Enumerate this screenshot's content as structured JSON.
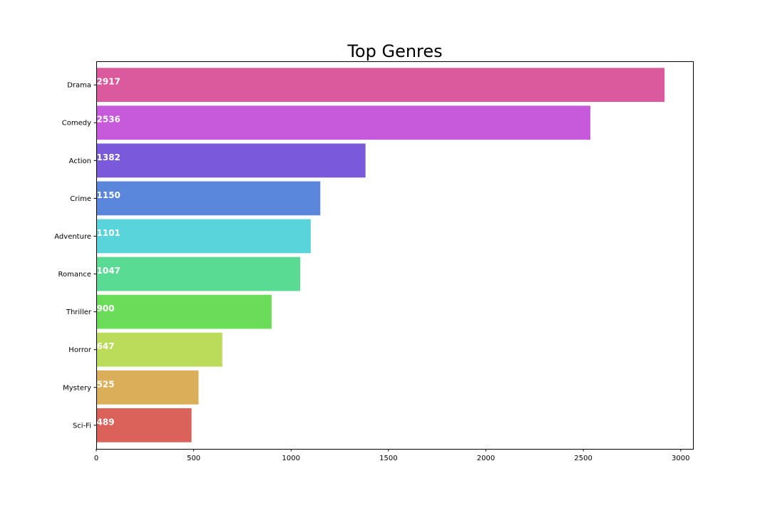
{
  "chart_data": {
    "type": "bar",
    "orientation": "horizontal",
    "title": "Top Genres",
    "xlabel": "",
    "ylabel": "",
    "categories": [
      "Drama",
      "Comedy",
      "Action",
      "Crime",
      "Adventure",
      "Romance",
      "Thriller",
      "Horror",
      "Mystery",
      "Sci-Fi"
    ],
    "values": [
      2917,
      2536,
      1382,
      1150,
      1101,
      1047,
      900,
      647,
      525,
      489
    ],
    "colors": [
      "#db5a9e",
      "#c65adb",
      "#7a5adb",
      "#5a86db",
      "#5ad4db",
      "#5adb93",
      "#6bdb5a",
      "#bbdb5a",
      "#dbaf5a",
      "#db625a"
    ],
    "xlim": [
      0,
      3063
    ],
    "xticks": [
      0,
      500,
      1000,
      1500,
      2000,
      2500,
      3000
    ],
    "grid": false,
    "legend": "none",
    "data_labels": true
  }
}
